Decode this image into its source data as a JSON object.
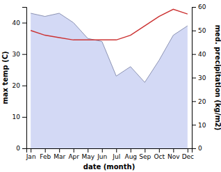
{
  "chart_data": {
    "type": "line",
    "xlabel": "date (month)",
    "ylabel": "max temp (C)",
    "y2label": "med. precipitation (kg/m2)",
    "categories": [
      "Jan",
      "Feb",
      "Mar",
      "Apr",
      "May",
      "Jun",
      "Jul",
      "Aug",
      "Sep",
      "Oct",
      "Nov",
      "Dec"
    ],
    "series": [
      {
        "type": "area",
        "color": "#bcc5f0",
        "values": [
          43,
          42,
          43,
          40,
          35,
          34,
          23,
          26,
          21,
          28,
          36,
          39
        ]
      },
      {
        "type": "line",
        "color": "#cc3333",
        "axis": "y2",
        "values": [
          50,
          48,
          47,
          46,
          46,
          46,
          46,
          48,
          52,
          56,
          59,
          57
        ]
      }
    ],
    "ylim": [
      0,
      45
    ],
    "yticks": [
      0,
      10,
      20,
      30,
      40
    ],
    "y2lim": [
      0,
      60
    ],
    "y2ticks": [
      0,
      10,
      20,
      30,
      40,
      50,
      60
    ]
  }
}
